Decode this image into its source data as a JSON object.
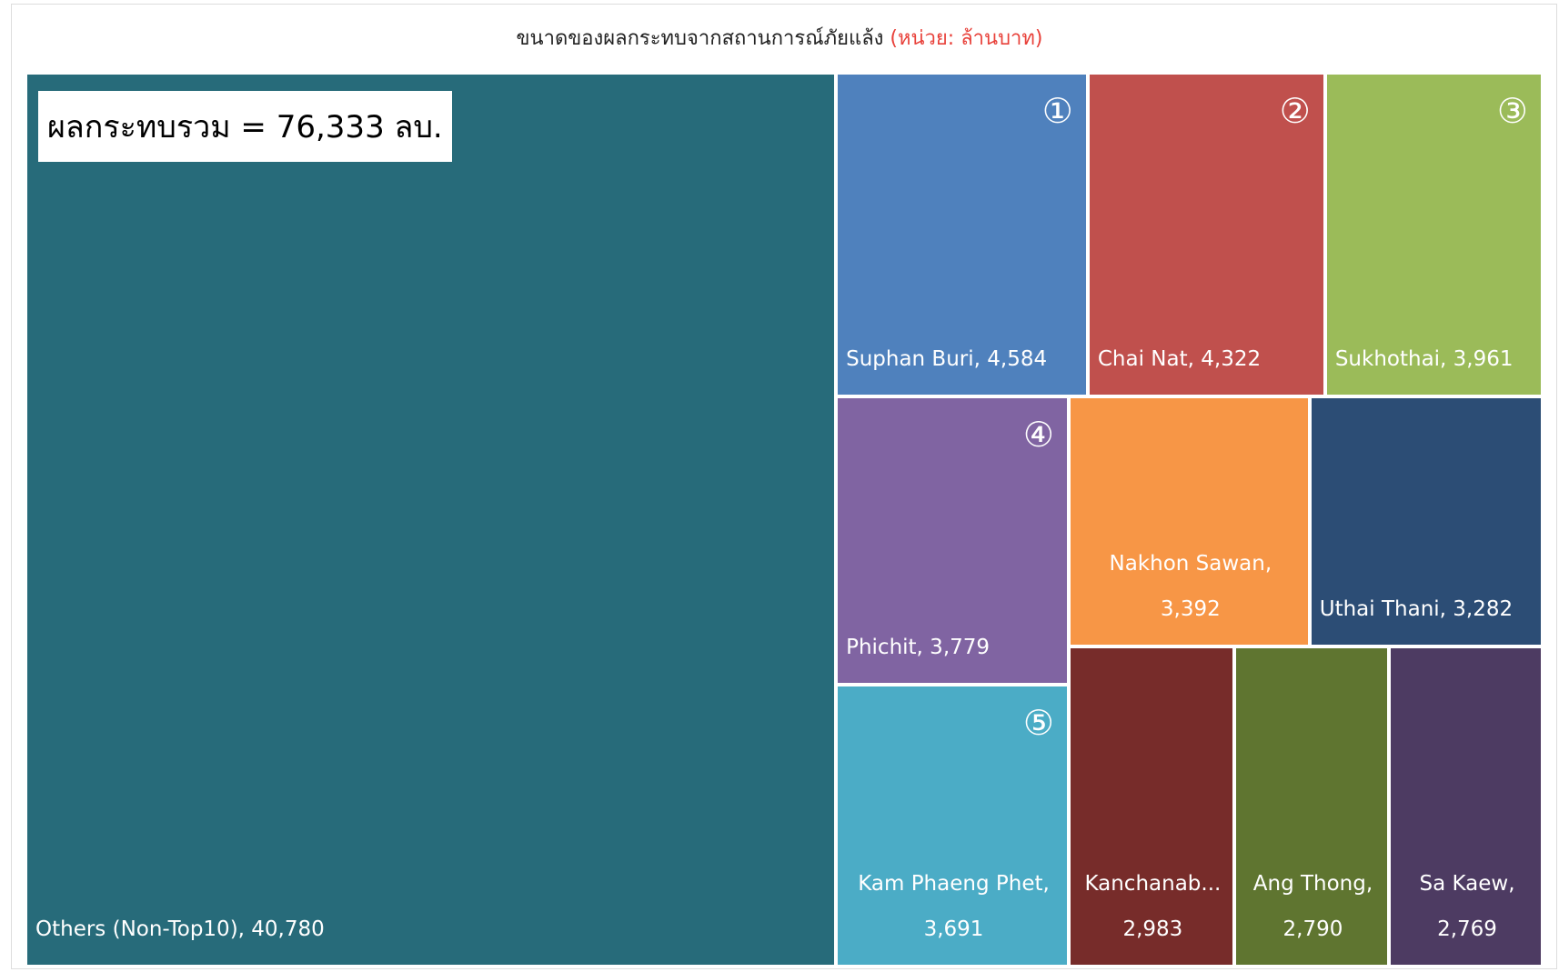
{
  "chart_data": {
    "type": "treemap",
    "title": "ขนาดของผลกระทบจากสถานการณ์ภัยแล้ง",
    "subtitle": "(หน่วย: ล้านบาท)",
    "annotation": "ผลกระทบรวม = 76,333 ลบ.",
    "labels": [
      "Others (Non-Top10), 40,780",
      "Suphan Buri, 4,584",
      "Chai Nat, 4,322",
      "Sukhothai, 3,961",
      "Phichit, 3,779",
      "Kam Phaeng Phet, 3,691",
      "Nakhon Sawan, 3,392",
      "Uthai Thani, 3,282",
      "Kanchanab... 2,983",
      "Ang Thong, 2,790",
      "Sa Kaew, 2,769"
    ],
    "values": [
      40780,
      4584,
      4322,
      3961,
      3779,
      3691,
      3392,
      3282,
      2983,
      2790,
      2769
    ],
    "ranks": [
      null,
      "①",
      "②",
      "③",
      "④",
      "⑤",
      null,
      null,
      null,
      null,
      null
    ],
    "colors": [
      "#276b7a",
      "#4f81bd",
      "#c0504d",
      "#9bbb59",
      "#8064a2",
      "#4bacc6",
      "#f79646",
      "#2c4d75",
      "#772c2a",
      "#5f7530",
      "#4d3b62"
    ]
  }
}
